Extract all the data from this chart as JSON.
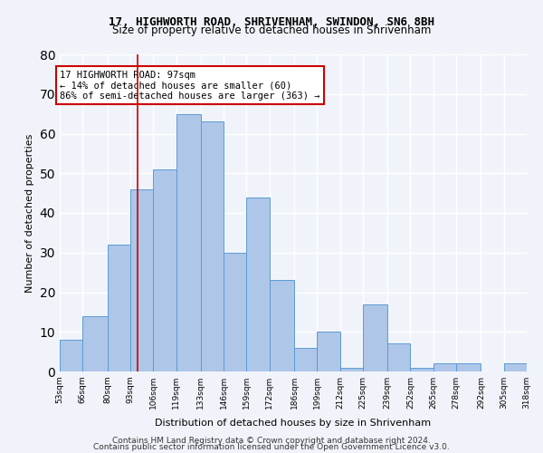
{
  "title1": "17, HIGHWORTH ROAD, SHRIVENHAM, SWINDON, SN6 8BH",
  "title2": "Size of property relative to detached houses in Shrivenham",
  "xlabel": "Distribution of detached houses by size in Shrivenham",
  "ylabel": "Number of detached properties",
  "bar_values": [
    8,
    14,
    32,
    46,
    51,
    65,
    63,
    30,
    44,
    23,
    6,
    10,
    1,
    17,
    7,
    1,
    2,
    2,
    0,
    2
  ],
  "bar_labels": [
    "53sqm",
    "66sqm",
    "80sqm",
    "93sqm",
    "106sqm",
    "119sqm",
    "133sqm",
    "146sqm",
    "159sqm",
    "172sqm",
    "186sqm",
    "199sqm",
    "212sqm",
    "225sqm",
    "239sqm",
    "252sqm",
    "265sqm",
    "278sqm",
    "292sqm",
    "305sqm",
    "318sqm"
  ],
  "bar_color": "#aec6e8",
  "bar_edge_color": "#5b9bd5",
  "annotation_box_text": "17 HIGHWORTH ROAD: 97sqm\n← 14% of detached houses are smaller (60)\n86% of semi-detached houses are larger (363) →",
  "annotation_box_color": "#ffffff",
  "annotation_box_edge_color": "#cc0000",
  "vline_x": 97,
  "vline_color": "#cc0000",
  "background_color": "#f0f4fa",
  "plot_bg_color": "#f0f4fa",
  "grid_color": "#ffffff",
  "ylim": [
    0,
    80
  ],
  "yticks": [
    0,
    10,
    20,
    30,
    40,
    50,
    60,
    70,
    80
  ],
  "footer1": "Contains HM Land Registry data © Crown copyright and database right 2024.",
  "footer2": "Contains public sector information licensed under the Open Government Licence v3.0.",
  "bin_edges": [
    53,
    66,
    80,
    93,
    106,
    119,
    133,
    146,
    159,
    172,
    186,
    199,
    212,
    225,
    239,
    252,
    265,
    278,
    292,
    305,
    318
  ]
}
